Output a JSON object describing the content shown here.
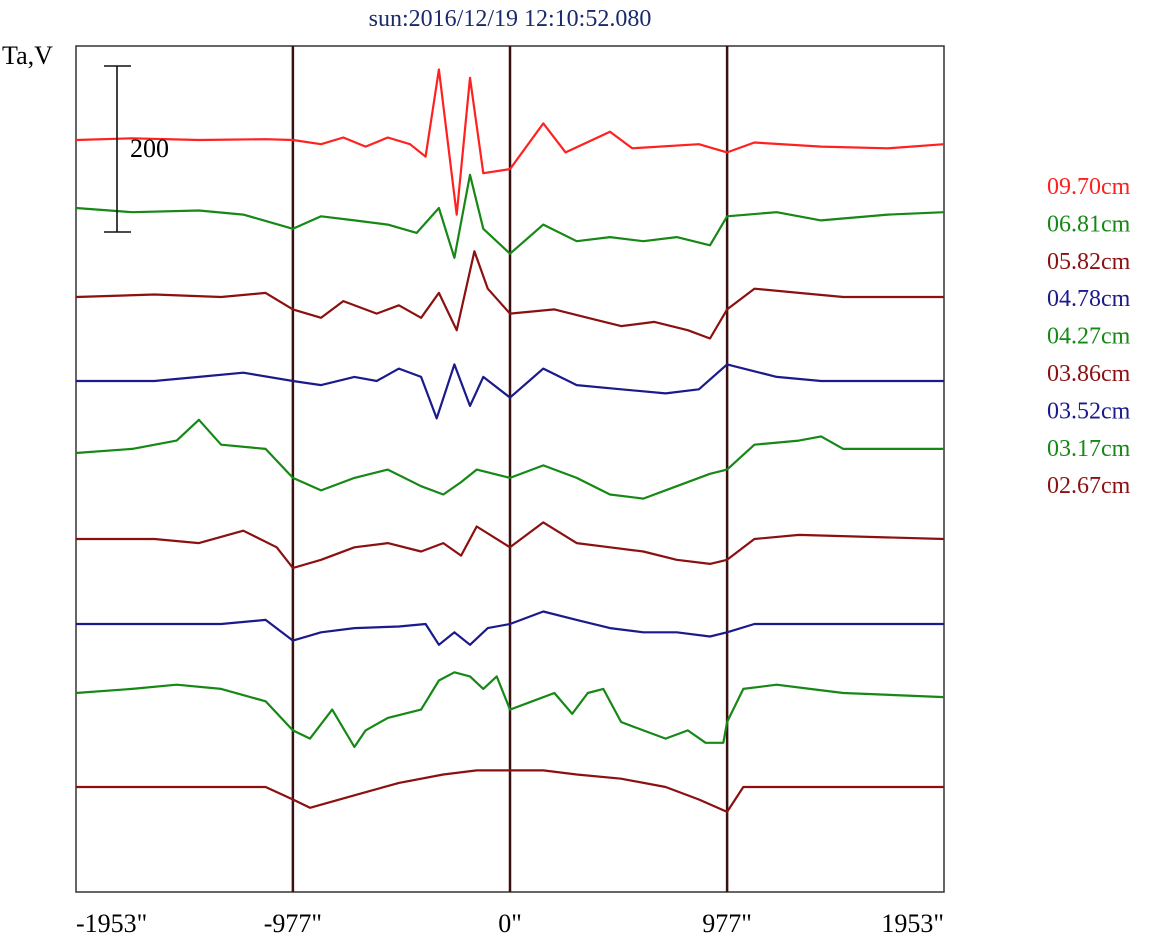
{
  "title": "sun:2016/12/19 12:10:52.080",
  "chart_data": {
    "type": "line",
    "title": "sun:2016/12/19 12:10:52.080",
    "ylabel": "Ta,V",
    "xlabel": "",
    "x_ticks": [
      "-1953\"",
      "-977\"",
      "0\"",
      "977\"",
      "1953\""
    ],
    "x_tick_values": [
      -1953,
      -977,
      0,
      977,
      1953
    ],
    "xlim": [
      -1953,
      1953
    ],
    "vertical_markers": [
      -977,
      0,
      977
    ],
    "scale_bar_label": "200",
    "scale_bar_value": 200,
    "legend": [
      {
        "name": "09.70cm",
        "color": "#ff2020"
      },
      {
        "name": "06.81cm",
        "color": "#168816"
      },
      {
        "name": "05.82cm",
        "color": "#8b1010"
      },
      {
        "name": "04.78cm",
        "color": "#1a1a8c"
      },
      {
        "name": "04.27cm",
        "color": "#168816"
      },
      {
        "name": "03.86cm",
        "color": "#8b1010"
      },
      {
        "name": "03.52cm",
        "color": "#1a1a8c"
      },
      {
        "name": "03.17cm",
        "color": "#168816"
      },
      {
        "name": "02.67cm",
        "color": "#8b1010"
      }
    ],
    "series": [
      {
        "name": "09.70cm",
        "color": "#ff2020",
        "points": [
          [
            -1953,
            0
          ],
          [
            -1700,
            2
          ],
          [
            -1400,
            0
          ],
          [
            -1100,
            1
          ],
          [
            -977,
            0
          ],
          [
            -850,
            -5
          ],
          [
            -750,
            3
          ],
          [
            -650,
            -8
          ],
          [
            -550,
            3
          ],
          [
            -450,
            -5
          ],
          [
            -380,
            -20
          ],
          [
            -320,
            85
          ],
          [
            -240,
            -90
          ],
          [
            -180,
            75
          ],
          [
            -120,
            -40
          ],
          [
            0,
            -35
          ],
          [
            150,
            20
          ],
          [
            250,
            -15
          ],
          [
            450,
            10
          ],
          [
            550,
            -10
          ],
          [
            850,
            -5
          ],
          [
            977,
            -15
          ],
          [
            1100,
            -3
          ],
          [
            1400,
            -8
          ],
          [
            1700,
            -10
          ],
          [
            1953,
            -5
          ]
        ]
      },
      {
        "name": "06.81cm",
        "color": "#168816",
        "points": [
          [
            -1953,
            0
          ],
          [
            -1700,
            -5
          ],
          [
            -1400,
            -3
          ],
          [
            -1200,
            -8
          ],
          [
            -977,
            -25
          ],
          [
            -850,
            -10
          ],
          [
            -700,
            -15
          ],
          [
            -550,
            -20
          ],
          [
            -420,
            -30
          ],
          [
            -320,
            0
          ],
          [
            -250,
            -60
          ],
          [
            -180,
            40
          ],
          [
            -120,
            -25
          ],
          [
            0,
            -55
          ],
          [
            150,
            -20
          ],
          [
            300,
            -40
          ],
          [
            450,
            -35
          ],
          [
            600,
            -40
          ],
          [
            750,
            -35
          ],
          [
            900,
            -45
          ],
          [
            977,
            -10
          ],
          [
            1200,
            -5
          ],
          [
            1400,
            -15
          ],
          [
            1700,
            -8
          ],
          [
            1953,
            -5
          ]
        ]
      },
      {
        "name": "05.82cm",
        "color": "#8b1010",
        "points": [
          [
            -1953,
            0
          ],
          [
            -1600,
            3
          ],
          [
            -1300,
            0
          ],
          [
            -1100,
            5
          ],
          [
            -977,
            -15
          ],
          [
            -850,
            -25
          ],
          [
            -750,
            -5
          ],
          [
            -600,
            -20
          ],
          [
            -500,
            -10
          ],
          [
            -400,
            -25
          ],
          [
            -320,
            5
          ],
          [
            -240,
            -40
          ],
          [
            -160,
            55
          ],
          [
            -100,
            10
          ],
          [
            0,
            -20
          ],
          [
            200,
            -15
          ],
          [
            350,
            -25
          ],
          [
            500,
            -35
          ],
          [
            650,
            -30
          ],
          [
            800,
            -40
          ],
          [
            900,
            -50
          ],
          [
            977,
            -15
          ],
          [
            1100,
            10
          ],
          [
            1300,
            5
          ],
          [
            1500,
            0
          ],
          [
            1953,
            0
          ]
        ]
      },
      {
        "name": "04.78cm",
        "color": "#1a1a8c",
        "points": [
          [
            -1953,
            0
          ],
          [
            -1600,
            0
          ],
          [
            -1400,
            5
          ],
          [
            -1200,
            10
          ],
          [
            -977,
            0
          ],
          [
            -850,
            -5
          ],
          [
            -700,
            5
          ],
          [
            -600,
            0
          ],
          [
            -500,
            15
          ],
          [
            -400,
            5
          ],
          [
            -330,
            -45
          ],
          [
            -250,
            20
          ],
          [
            -180,
            -30
          ],
          [
            -120,
            5
          ],
          [
            0,
            -20
          ],
          [
            150,
            15
          ],
          [
            300,
            -5
          ],
          [
            500,
            -10
          ],
          [
            700,
            -15
          ],
          [
            850,
            -10
          ],
          [
            977,
            20
          ],
          [
            1200,
            5
          ],
          [
            1400,
            0
          ],
          [
            1953,
            0
          ]
        ]
      },
      {
        "name": "04.27cm",
        "color": "#168816",
        "points": [
          [
            -1953,
            0
          ],
          [
            -1700,
            5
          ],
          [
            -1500,
            15
          ],
          [
            -1400,
            40
          ],
          [
            -1300,
            10
          ],
          [
            -1100,
            5
          ],
          [
            -977,
            -30
          ],
          [
            -850,
            -45
          ],
          [
            -700,
            -30
          ],
          [
            -550,
            -20
          ],
          [
            -400,
            -40
          ],
          [
            -300,
            -50
          ],
          [
            -220,
            -35
          ],
          [
            -150,
            -20
          ],
          [
            0,
            -30
          ],
          [
            150,
            -15
          ],
          [
            300,
            -30
          ],
          [
            450,
            -50
          ],
          [
            600,
            -55
          ],
          [
            750,
            -40
          ],
          [
            900,
            -25
          ],
          [
            977,
            -20
          ],
          [
            1100,
            10
          ],
          [
            1300,
            15
          ],
          [
            1400,
            20
          ],
          [
            1500,
            5
          ],
          [
            1953,
            5
          ]
        ]
      },
      {
        "name": "03.86cm",
        "color": "#8b1010",
        "points": [
          [
            -1953,
            0
          ],
          [
            -1600,
            0
          ],
          [
            -1400,
            -5
          ],
          [
            -1200,
            10
          ],
          [
            -1050,
            -10
          ],
          [
            -977,
            -35
          ],
          [
            -850,
            -25
          ],
          [
            -700,
            -10
          ],
          [
            -550,
            -5
          ],
          [
            -400,
            -15
          ],
          [
            -300,
            -5
          ],
          [
            -220,
            -20
          ],
          [
            -150,
            15
          ],
          [
            0,
            -10
          ],
          [
            150,
            20
          ],
          [
            300,
            -5
          ],
          [
            450,
            -10
          ],
          [
            600,
            -15
          ],
          [
            750,
            -25
          ],
          [
            900,
            -30
          ],
          [
            977,
            -25
          ],
          [
            1100,
            0
          ],
          [
            1300,
            5
          ],
          [
            1953,
            0
          ]
        ]
      },
      {
        "name": "03.52cm",
        "color": "#1a1a8c",
        "points": [
          [
            -1953,
            0
          ],
          [
            -1600,
            0
          ],
          [
            -1300,
            0
          ],
          [
            -1100,
            5
          ],
          [
            -977,
            -20
          ],
          [
            -850,
            -10
          ],
          [
            -700,
            -5
          ],
          [
            -500,
            -3
          ],
          [
            -380,
            0
          ],
          [
            -320,
            -25
          ],
          [
            -250,
            -10
          ],
          [
            -180,
            -25
          ],
          [
            -100,
            -5
          ],
          [
            0,
            0
          ],
          [
            150,
            15
          ],
          [
            300,
            5
          ],
          [
            450,
            -5
          ],
          [
            600,
            -10
          ],
          [
            750,
            -10
          ],
          [
            900,
            -15
          ],
          [
            977,
            -10
          ],
          [
            1100,
            0
          ],
          [
            1953,
            0
          ]
        ]
      },
      {
        "name": "03.17cm",
        "color": "#168816",
        "points": [
          [
            -1953,
            0
          ],
          [
            -1700,
            5
          ],
          [
            -1500,
            10
          ],
          [
            -1300,
            5
          ],
          [
            -1100,
            -10
          ],
          [
            -977,
            -45
          ],
          [
            -900,
            -55
          ],
          [
            -800,
            -20
          ],
          [
            -700,
            -65
          ],
          [
            -650,
            -45
          ],
          [
            -550,
            -30
          ],
          [
            -400,
            -20
          ],
          [
            -320,
            15
          ],
          [
            -250,
            25
          ],
          [
            -180,
            20
          ],
          [
            -120,
            5
          ],
          [
            -60,
            20
          ],
          [
            0,
            -20
          ],
          [
            100,
            -10
          ],
          [
            200,
            0
          ],
          [
            280,
            -25
          ],
          [
            350,
            0
          ],
          [
            420,
            5
          ],
          [
            500,
            -35
          ],
          [
            600,
            -45
          ],
          [
            700,
            -55
          ],
          [
            800,
            -45
          ],
          [
            880,
            -60
          ],
          [
            960,
            -60
          ],
          [
            977,
            -35
          ],
          [
            1050,
            5
          ],
          [
            1200,
            10
          ],
          [
            1350,
            5
          ],
          [
            1500,
            0
          ],
          [
            1953,
            -5
          ]
        ]
      },
      {
        "name": "02.67cm",
        "color": "#8b1010",
        "points": [
          [
            -1953,
            0
          ],
          [
            -1600,
            0
          ],
          [
            -1300,
            0
          ],
          [
            -1100,
            0
          ],
          [
            -977,
            -15
          ],
          [
            -900,
            -25
          ],
          [
            -700,
            -10
          ],
          [
            -500,
            5
          ],
          [
            -300,
            15
          ],
          [
            -150,
            20
          ],
          [
            0,
            20
          ],
          [
            150,
            20
          ],
          [
            300,
            15
          ],
          [
            500,
            10
          ],
          [
            700,
            0
          ],
          [
            850,
            -15
          ],
          [
            977,
            -30
          ],
          [
            1050,
            0
          ],
          [
            1953,
            0
          ]
        ]
      }
    ]
  }
}
